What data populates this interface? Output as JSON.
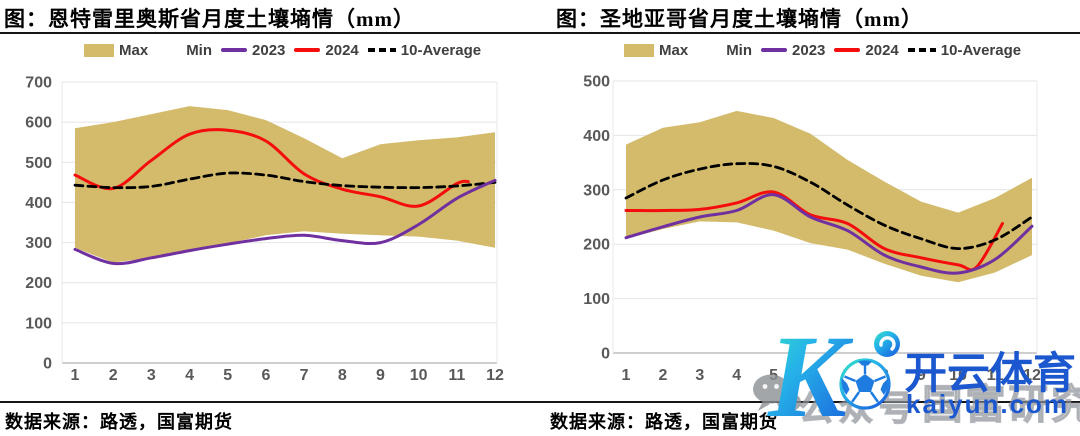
{
  "page": {
    "background": "#FFFFFF"
  },
  "colors": {
    "band": "#D3BB6B",
    "line_2023": "#7030A0",
    "line_2024": "#F50D0D",
    "line_10avg": "#000000",
    "axis_label": "#595959",
    "watermark_blue": "#1B57CE",
    "watermark_gray": "#8B9094"
  },
  "panels": [
    {
      "title": "图：恩特雷里奥斯省月度土壤墒情（mm）",
      "source": "数据来源：路透，国富期货",
      "legend": {
        "items": [
          {
            "label": "Max",
            "swatch": "box",
            "color": "#D3BB6B"
          },
          {
            "label": "Min",
            "swatch": "none",
            "color": "#FFFFFF"
          },
          {
            "label": "2023",
            "swatch": "line",
            "color": "#7030A0"
          },
          {
            "label": "2024",
            "swatch": "line",
            "color": "#F50D0D"
          },
          {
            "label": "10-Average",
            "swatch": "dash",
            "color": "#000000"
          }
        ]
      },
      "chart_data": {
        "type": "line",
        "title": "恩特雷里奥斯省月度土壤墒情（mm）",
        "x": [
          1,
          2,
          3,
          4,
          5,
          6,
          7,
          8,
          9,
          10,
          11,
          12
        ],
        "ylim": [
          0,
          700
        ],
        "ytick_step": 100,
        "grid": true,
        "legend_position": "top",
        "series": [
          {
            "name": "Max",
            "role": "band_top",
            "values": [
              585,
              600,
              620,
              640,
              630,
              605,
              560,
              510,
              545,
              555,
              562,
              575
            ]
          },
          {
            "name": "Min",
            "role": "band_bottom",
            "values": [
              287,
              250,
              262,
              282,
              298,
              318,
              328,
              322,
              318,
              315,
              305,
              287
            ]
          },
          {
            "name": "2023",
            "role": "line",
            "color": "#7030A0",
            "values": [
              283,
              248,
              262,
              280,
              296,
              310,
              318,
              305,
              300,
              345,
              410,
              455
            ]
          },
          {
            "name": "2024",
            "role": "line",
            "color": "#F50D0D",
            "x": [
              1,
              2,
              3,
              4,
              5,
              6,
              7,
              8,
              9,
              10,
              11,
              11.3
            ],
            "values": [
              468,
              435,
              505,
              570,
              580,
              553,
              471,
              433,
              414,
              391,
              447,
              452
            ]
          },
          {
            "name": "10-Average",
            "role": "line",
            "color": "#000000",
            "dash": true,
            "values": [
              443,
              437,
              440,
              458,
              473,
              468,
              452,
              442,
              438,
              437,
              441,
              450
            ]
          }
        ]
      }
    },
    {
      "title": "图：圣地亚哥省月度土壤墒情（mm）",
      "source": "数据来源：路透，国富期货",
      "legend": {
        "items": [
          {
            "label": "Max",
            "swatch": "box",
            "color": "#D3BB6B"
          },
          {
            "label": "Min",
            "swatch": "none",
            "color": "#FFFFFF"
          },
          {
            "label": "2023",
            "swatch": "line",
            "color": "#7030A0"
          },
          {
            "label": "2024",
            "swatch": "line",
            "color": "#F50D0D"
          },
          {
            "label": "10-Average",
            "swatch": "dash",
            "color": "#000000"
          }
        ]
      },
      "chart_data": {
        "type": "line",
        "title": "圣地亚哥省月度土壤墒情（mm）",
        "x": [
          1,
          2,
          3,
          4,
          5,
          6,
          7,
          8,
          9,
          10,
          11,
          12
        ],
        "ylim": [
          0,
          500
        ],
        "ytick_step": 100,
        "grid": true,
        "legend_position": "top",
        "series": [
          {
            "name": "Max",
            "role": "band_top",
            "values": [
              383,
              414,
              424,
              445,
              432,
              403,
              355,
              315,
              278,
              258,
              285,
              322
            ]
          },
          {
            "name": "Min",
            "role": "band_bottom",
            "values": [
              210,
              228,
              242,
              240,
              225,
              202,
              190,
              164,
              142,
              130,
              148,
              180
            ]
          },
          {
            "name": "2023",
            "role": "line",
            "color": "#7030A0",
            "values": [
              212,
              232,
              250,
              262,
              291,
              250,
              225,
              180,
              158,
              147,
              172,
              233
            ]
          },
          {
            "name": "2024",
            "role": "line",
            "color": "#F50D0D",
            "x": [
              1,
              2,
              3,
              4,
              5,
              6,
              7,
              8,
              9,
              10,
              10.5,
              11.2
            ],
            "values": [
              262,
              262,
              264,
              276,
              296,
              254,
              238,
              192,
              175,
              162,
              158,
              238
            ]
          },
          {
            "name": "10-Average",
            "role": "line",
            "color": "#000000",
            "dash": true,
            "values": [
              285,
              318,
              338,
              348,
              343,
              314,
              272,
              235,
              210,
              192,
              208,
              250
            ]
          }
        ]
      }
    }
  ],
  "watermark": {
    "wechat_icon": "wechat-icon",
    "text_gray_1": "公众号",
    "text_gray_2": "·国富研究",
    "brand_cn": "开云体育",
    "brand_url": "kaiyun.com"
  }
}
